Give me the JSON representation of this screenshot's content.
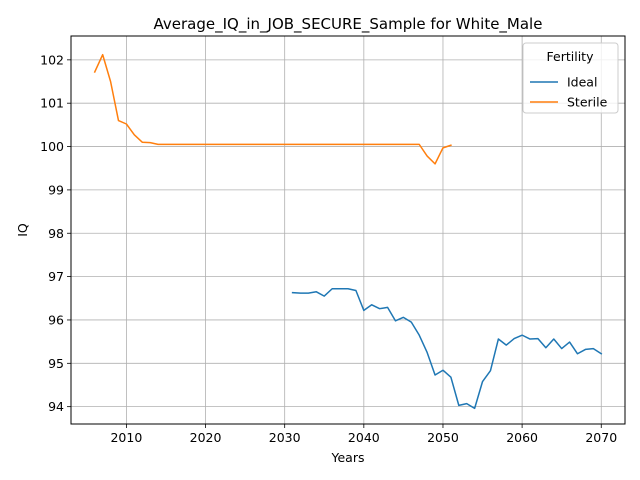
{
  "chart_data": {
    "type": "line",
    "title": "Average_IQ_in_JOB_SECURE_Sample for White_Male",
    "xlabel": "Years",
    "ylabel": "IQ",
    "xlim": [
      2003,
      2073
    ],
    "ylim": [
      93.6,
      102.55
    ],
    "xticks": [
      2010,
      2020,
      2030,
      2040,
      2050,
      2060,
      2070
    ],
    "yticks": [
      94,
      95,
      96,
      97,
      98,
      99,
      100,
      101,
      102
    ],
    "grid": true,
    "legend": {
      "title": "Fertility",
      "placement": "top-right"
    },
    "series": [
      {
        "name": "Ideal",
        "color": "#1f77b4",
        "x": [
          2031,
          2032,
          2033,
          2034,
          2035,
          2036,
          2037,
          2038,
          2039,
          2040,
          2041,
          2042,
          2043,
          2044,
          2045,
          2046,
          2047,
          2048,
          2049,
          2050,
          2051,
          2052,
          2053,
          2054,
          2055,
          2056,
          2057,
          2058,
          2059,
          2060,
          2061,
          2062,
          2063,
          2064,
          2065,
          2066,
          2067,
          2068,
          2069,
          2070
        ],
        "y": [
          96.63,
          96.62,
          96.62,
          96.65,
          96.55,
          96.72,
          96.72,
          96.72,
          96.68,
          96.22,
          96.35,
          96.26,
          96.29,
          95.98,
          96.06,
          95.95,
          95.65,
          95.25,
          94.73,
          94.84,
          94.68,
          94.03,
          94.07,
          93.96,
          94.58,
          94.83,
          95.56,
          95.42,
          95.57,
          95.65,
          95.56,
          95.57,
          95.36,
          95.56,
          95.34,
          95.49,
          95.22,
          95.32,
          95.34,
          95.22
        ]
      },
      {
        "name": "Sterile",
        "color": "#ff7f0e",
        "x": [
          2006,
          2007,
          2008,
          2009,
          2010,
          2011,
          2012,
          2013,
          2014,
          2015,
          2016,
          2017,
          2018,
          2019,
          2020,
          2021,
          2022,
          2023,
          2024,
          2025,
          2026,
          2027,
          2028,
          2029,
          2030,
          2031,
          2032,
          2033,
          2034,
          2035,
          2036,
          2037,
          2038,
          2039,
          2040,
          2041,
          2042,
          2043,
          2044,
          2045,
          2046,
          2047,
          2048,
          2049,
          2050,
          2051
        ],
        "y": [
          101.72,
          102.12,
          101.5,
          100.6,
          100.52,
          100.27,
          100.1,
          100.09,
          100.05,
          100.05,
          100.05,
          100.05,
          100.05,
          100.05,
          100.05,
          100.05,
          100.05,
          100.05,
          100.05,
          100.05,
          100.05,
          100.05,
          100.05,
          100.05,
          100.05,
          100.05,
          100.05,
          100.05,
          100.05,
          100.05,
          100.05,
          100.05,
          100.05,
          100.05,
          100.05,
          100.05,
          100.05,
          100.05,
          100.05,
          100.05,
          100.05,
          100.05,
          99.78,
          99.6,
          99.97,
          100.03
        ]
      }
    ]
  }
}
